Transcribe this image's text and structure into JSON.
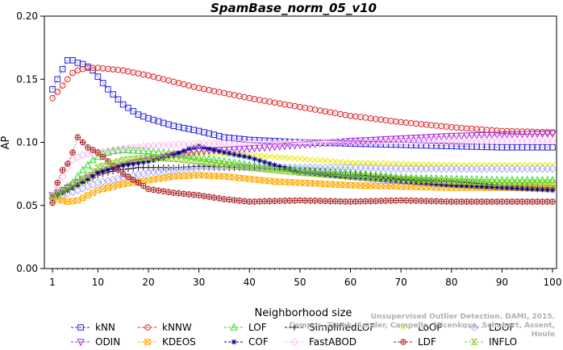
{
  "chart_data": {
    "type": "line",
    "title": "SpamBase_norm_05_v10",
    "xlabel": "Neighborhood size",
    "ylabel": "AP",
    "xlim": [
      1,
      100
    ],
    "ylim": [
      0.0,
      0.2
    ],
    "xticks": [
      "1",
      "10",
      "20",
      "30",
      "40",
      "50",
      "60",
      "70",
      "80",
      "90",
      "100"
    ],
    "yticks": [
      "0.00",
      "0.05",
      "0.10",
      "0.15",
      "0.20"
    ],
    "grid": false,
    "legend_position": "bottom",
    "series": [
      {
        "name": "kNN",
        "color": "#2222dd",
        "marker": "square",
        "points": [
          [
            1,
            0.142
          ],
          [
            2,
            0.15
          ],
          [
            3,
            0.158
          ],
          [
            4,
            0.165
          ],
          [
            5,
            0.165
          ],
          [
            6,
            0.163
          ],
          [
            7,
            0.162
          ],
          [
            8,
            0.16
          ],
          [
            9,
            0.157
          ],
          [
            10,
            0.152
          ],
          [
            12,
            0.142
          ],
          [
            15,
            0.13
          ],
          [
            18,
            0.122
          ],
          [
            20,
            0.119
          ],
          [
            25,
            0.113
          ],
          [
            30,
            0.109
          ],
          [
            35,
            0.104
          ],
          [
            40,
            0.102
          ],
          [
            45,
            0.101
          ],
          [
            50,
            0.1
          ],
          [
            60,
            0.099
          ],
          [
            70,
            0.098
          ],
          [
            80,
            0.097
          ],
          [
            90,
            0.096
          ],
          [
            100,
            0.096
          ]
        ]
      },
      {
        "name": "kNNW",
        "color": "#dd2222",
        "marker": "circle",
        "points": [
          [
            1,
            0.135
          ],
          [
            2,
            0.14
          ],
          [
            3,
            0.145
          ],
          [
            4,
            0.15
          ],
          [
            5,
            0.155
          ],
          [
            6,
            0.157
          ],
          [
            8,
            0.159
          ],
          [
            10,
            0.159
          ],
          [
            15,
            0.157
          ],
          [
            20,
            0.153
          ],
          [
            25,
            0.148
          ],
          [
            30,
            0.143
          ],
          [
            40,
            0.135
          ],
          [
            50,
            0.128
          ],
          [
            60,
            0.121
          ],
          [
            70,
            0.116
          ],
          [
            80,
            0.112
          ],
          [
            90,
            0.109
          ],
          [
            100,
            0.108
          ]
        ]
      },
      {
        "name": "LOF",
        "color": "#22dd22",
        "marker": "triangle-up",
        "points": [
          [
            1,
            0.058
          ],
          [
            3,
            0.062
          ],
          [
            5,
            0.068
          ],
          [
            7,
            0.078
          ],
          [
            9,
            0.086
          ],
          [
            11,
            0.091
          ],
          [
            13,
            0.093
          ],
          [
            15,
            0.094
          ],
          [
            20,
            0.093
          ],
          [
            25,
            0.091
          ],
          [
            30,
            0.088
          ],
          [
            40,
            0.082
          ],
          [
            50,
            0.078
          ],
          [
            60,
            0.076
          ],
          [
            70,
            0.072
          ],
          [
            80,
            0.071
          ],
          [
            90,
            0.07
          ],
          [
            100,
            0.07
          ]
        ]
      },
      {
        "name": "SimplifiedLOF",
        "color": "#111111",
        "marker": "plus",
        "points": [
          [
            1,
            0.056
          ],
          [
            3,
            0.06
          ],
          [
            5,
            0.064
          ],
          [
            8,
            0.07
          ],
          [
            10,
            0.074
          ],
          [
            14,
            0.078
          ],
          [
            18,
            0.08
          ],
          [
            25,
            0.08
          ],
          [
            30,
            0.081
          ],
          [
            40,
            0.08
          ],
          [
            50,
            0.078
          ],
          [
            60,
            0.075
          ],
          [
            70,
            0.071
          ],
          [
            80,
            0.069
          ],
          [
            90,
            0.066
          ],
          [
            100,
            0.064
          ]
        ]
      },
      {
        "name": "LoOP",
        "color": "#e8e800",
        "marker": "x",
        "points": [
          [
            1,
            0.057
          ],
          [
            3,
            0.06
          ],
          [
            6,
            0.066
          ],
          [
            10,
            0.075
          ],
          [
            15,
            0.083
          ],
          [
            20,
            0.088
          ],
          [
            25,
            0.091
          ],
          [
            30,
            0.092
          ],
          [
            40,
            0.09
          ],
          [
            50,
            0.087
          ],
          [
            60,
            0.084
          ],
          [
            70,
            0.083
          ],
          [
            80,
            0.082
          ],
          [
            90,
            0.082
          ],
          [
            100,
            0.082
          ]
        ]
      },
      {
        "name": "LDOF",
        "color": "#aaaaff",
        "marker": "diamond",
        "points": [
          [
            1,
            0.056
          ],
          [
            3,
            0.058
          ],
          [
            6,
            0.062
          ],
          [
            10,
            0.068
          ],
          [
            15,
            0.072
          ],
          [
            20,
            0.076
          ],
          [
            30,
            0.08
          ],
          [
            40,
            0.08
          ],
          [
            50,
            0.08
          ],
          [
            60,
            0.08
          ],
          [
            70,
            0.079
          ],
          [
            80,
            0.079
          ],
          [
            90,
            0.079
          ],
          [
            100,
            0.079
          ]
        ]
      },
      {
        "name": "ODIN",
        "color": "#aa22dd",
        "marker": "triangle-down",
        "points": [
          [
            1,
            0.058
          ],
          [
            3,
            0.062
          ],
          [
            5,
            0.066
          ],
          [
            8,
            0.072
          ],
          [
            10,
            0.076
          ],
          [
            15,
            0.082
          ],
          [
            20,
            0.086
          ],
          [
            25,
            0.09
          ],
          [
            30,
            0.093
          ],
          [
            35,
            0.094
          ],
          [
            40,
            0.095
          ],
          [
            50,
            0.098
          ],
          [
            60,
            0.101
          ],
          [
            70,
            0.103
          ],
          [
            80,
            0.105
          ],
          [
            90,
            0.106
          ],
          [
            100,
            0.107
          ]
        ]
      },
      {
        "name": "KDEOS",
        "color": "#ffaa00",
        "marker": "square-x",
        "points": [
          [
            1,
            0.057
          ],
          [
            2,
            0.055
          ],
          [
            4,
            0.053
          ],
          [
            6,
            0.054
          ],
          [
            8,
            0.058
          ],
          [
            10,
            0.062
          ],
          [
            12,
            0.064
          ],
          [
            15,
            0.067
          ],
          [
            20,
            0.07
          ],
          [
            25,
            0.073
          ],
          [
            30,
            0.074
          ],
          [
            35,
            0.073
          ],
          [
            40,
            0.071
          ],
          [
            45,
            0.069
          ],
          [
            50,
            0.068
          ],
          [
            60,
            0.066
          ],
          [
            70,
            0.065
          ],
          [
            80,
            0.064
          ],
          [
            90,
            0.064
          ],
          [
            100,
            0.064
          ]
        ]
      },
      {
        "name": "COF",
        "color": "#000088",
        "marker": "asterisk",
        "points": [
          [
            1,
            0.057
          ],
          [
            3,
            0.06
          ],
          [
            5,
            0.064
          ],
          [
            8,
            0.071
          ],
          [
            10,
            0.076
          ],
          [
            15,
            0.082
          ],
          [
            20,
            0.085
          ],
          [
            25,
            0.09
          ],
          [
            28,
            0.095
          ],
          [
            30,
            0.097
          ],
          [
            32,
            0.095
          ],
          [
            35,
            0.092
          ],
          [
            40,
            0.088
          ],
          [
            45,
            0.082
          ],
          [
            50,
            0.076
          ],
          [
            60,
            0.072
          ],
          [
            70,
            0.069
          ],
          [
            80,
            0.066
          ],
          [
            90,
            0.064
          ],
          [
            100,
            0.062
          ]
        ]
      },
      {
        "name": "FastABOD",
        "color": "#ffbbee",
        "marker": "diamond",
        "points": [
          [
            1,
            0.058
          ],
          [
            2,
            0.065
          ],
          [
            3,
            0.073
          ],
          [
            4,
            0.08
          ],
          [
            5,
            0.086
          ],
          [
            7,
            0.09
          ],
          [
            10,
            0.092
          ],
          [
            15,
            0.095
          ],
          [
            20,
            0.097
          ],
          [
            25,
            0.098
          ],
          [
            30,
            0.099
          ],
          [
            40,
            0.1
          ],
          [
            50,
            0.1
          ],
          [
            60,
            0.1
          ],
          [
            70,
            0.1
          ],
          [
            80,
            0.1
          ],
          [
            90,
            0.101
          ],
          [
            100,
            0.101
          ]
        ]
      },
      {
        "name": "LDF",
        "color": "#aa2222",
        "marker": "circle-plus",
        "points": [
          [
            1,
            0.052
          ],
          [
            2,
            0.068
          ],
          [
            3,
            0.078
          ],
          [
            4,
            0.083
          ],
          [
            5,
            0.092
          ],
          [
            6,
            0.104
          ],
          [
            7,
            0.1
          ],
          [
            8,
            0.096
          ],
          [
            10,
            0.092
          ],
          [
            12,
            0.085
          ],
          [
            15,
            0.075
          ],
          [
            18,
            0.068
          ],
          [
            20,
            0.063
          ],
          [
            25,
            0.06
          ],
          [
            30,
            0.058
          ],
          [
            35,
            0.055
          ],
          [
            40,
            0.053
          ],
          [
            50,
            0.054
          ],
          [
            60,
            0.053
          ],
          [
            70,
            0.054
          ],
          [
            80,
            0.053
          ],
          [
            90,
            0.053
          ],
          [
            100,
            0.053
          ]
        ]
      },
      {
        "name": "INFLO",
        "color": "#88cc22",
        "marker": "hourglass",
        "points": [
          [
            1,
            0.057
          ],
          [
            3,
            0.061
          ],
          [
            5,
            0.066
          ],
          [
            8,
            0.074
          ],
          [
            10,
            0.08
          ],
          [
            15,
            0.086
          ],
          [
            20,
            0.088
          ],
          [
            25,
            0.087
          ],
          [
            30,
            0.085
          ],
          [
            40,
            0.08
          ],
          [
            50,
            0.076
          ],
          [
            60,
            0.073
          ],
          [
            70,
            0.071
          ],
          [
            80,
            0.069
          ],
          [
            90,
            0.068
          ],
          [
            100,
            0.068
          ]
        ]
      }
    ],
    "legend_order": [
      "kNN",
      "kNNW",
      "LOF",
      "SimplifiedLOF",
      "LoOP",
      "LDOF",
      "ODIN",
      "KDEOS",
      "COF",
      "FastABOD",
      "LDF",
      "INFLO"
    ]
  },
  "credit_lines": [
    "Unsupervised Outlier Detection. DAMI, 2015.",
    "Campos, Zimek, Sander, Campello, Micenkova, Schubert, Assent, Houle"
  ]
}
